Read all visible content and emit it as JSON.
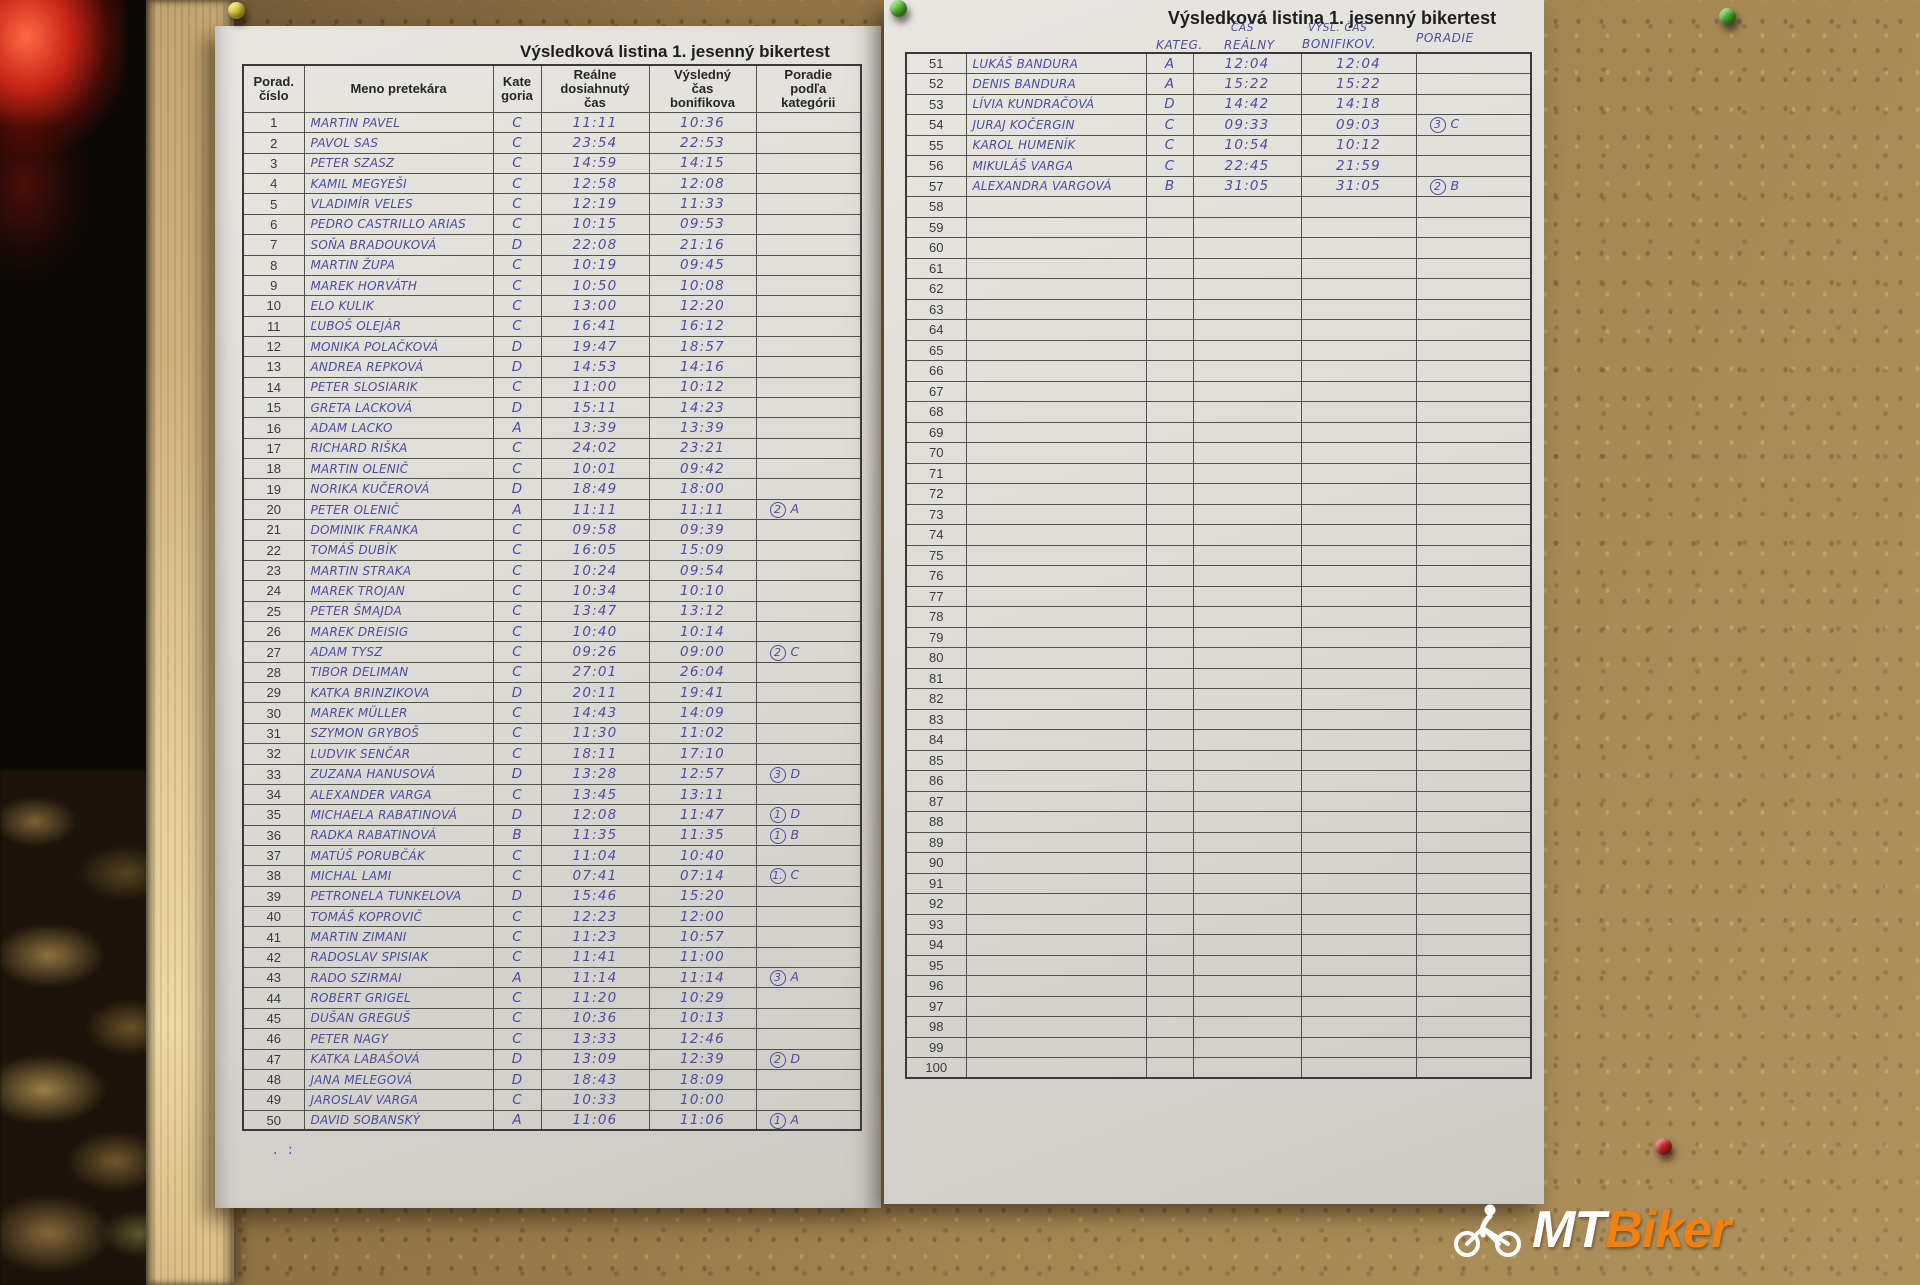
{
  "colors": {
    "ink": "#4c4c9d",
    "watermark_orange": "#f08011",
    "paper": "#dedcd6",
    "cork": "#9c7e4c"
  },
  "pins": [
    {
      "name": "pushpin-yellow",
      "color": "#e3cf2a"
    },
    {
      "name": "pushpin-green-left",
      "color": "#54c12d"
    },
    {
      "name": "pushpin-green-right",
      "color": "#49b32a"
    },
    {
      "name": "pushpin-red",
      "color": "#cf231e"
    }
  ],
  "left_sheet": {
    "title": "Výsledková listina 1. jesenný bikertest",
    "headers": [
      [
        "Porad.",
        "číslo"
      ],
      [
        "Meno pretekára"
      ],
      [
        "Kate",
        "goria"
      ],
      [
        "Reálne",
        "dosiahnutý",
        "čas"
      ],
      [
        "Výsledný",
        "čas",
        "bonifikova"
      ],
      [
        "Poradie",
        "podľa",
        "kategórii"
      ]
    ],
    "footer_marks": ". :",
    "rows": [
      {
        "n": 1,
        "name": "MARTIN PAVEL",
        "cat": "C",
        "t1": "11:11",
        "t2": "10:36"
      },
      {
        "n": 2,
        "name": "PAVOL SAS",
        "cat": "C",
        "t1": "23:54",
        "t2": "22:53"
      },
      {
        "n": 3,
        "name": "PETER SZASZ",
        "cat": "C",
        "t1": "14:59",
        "t2": "14:15"
      },
      {
        "n": 4,
        "name": "KAMIL MEGYEŠI",
        "cat": "C",
        "t1": "12:58",
        "t2": "12:08"
      },
      {
        "n": 5,
        "name": "VLADIMÍR VELES",
        "cat": "C",
        "t1": "12:19",
        "t2": "11:33"
      },
      {
        "n": 6,
        "name": "PEDRO CASTRILLO ARIAS",
        "cat": "C",
        "t1": "10:15",
        "t2": "09:53"
      },
      {
        "n": 7,
        "name": "SOŇA BRADOUKOVÁ",
        "cat": "D",
        "t1": "22:08",
        "t2": "21:16"
      },
      {
        "n": 8,
        "name": "MARTIN ŽUPA",
        "cat": "C",
        "t1": "10:19",
        "t2": "09:45"
      },
      {
        "n": 9,
        "name": "MAREK HORVÁTH",
        "cat": "C",
        "t1": "10:50",
        "t2": "10:08"
      },
      {
        "n": 10,
        "name": "ELO KULIK",
        "cat": "C",
        "t1": "13:00",
        "t2": "12:20"
      },
      {
        "n": 11,
        "name": "ĽUBOŠ OLEJÁR",
        "cat": "C",
        "t1": "16:41",
        "t2": "16:12"
      },
      {
        "n": 12,
        "name": "MONIKA POLAČKOVÁ",
        "cat": "D",
        "t1": "19:47",
        "t2": "18:57"
      },
      {
        "n": 13,
        "name": "ANDREA REPKOVÁ",
        "cat": "D",
        "t1": "14:53",
        "t2": "14:16"
      },
      {
        "n": 14,
        "name": "PETER SLOSIARIK",
        "cat": "C",
        "t1": "11:00",
        "t2": "10:12"
      },
      {
        "n": 15,
        "name": "GRETA LACKOVÁ",
        "cat": "D",
        "t1": "15:11",
        "t2": "14:23"
      },
      {
        "n": 16,
        "name": "ADAM LACKO",
        "cat": "A",
        "t1": "13:39",
        "t2": "13:39"
      },
      {
        "n": 17,
        "name": "RICHARD RIŠKA",
        "cat": "C",
        "t1": "24:02",
        "t2": "23:21"
      },
      {
        "n": 18,
        "name": "MARTIN OLENIČ",
        "cat": "C",
        "t1": "10:01",
        "t2": "09:42"
      },
      {
        "n": 19,
        "name": "NORIKA KUČEROVÁ",
        "cat": "D",
        "t1": "18:49",
        "t2": "18:00"
      },
      {
        "n": 20,
        "name": "PETER OLENIČ",
        "cat": "A",
        "t1": "11:11",
        "t2": "11:11",
        "p": "2A"
      },
      {
        "n": 21,
        "name": "DOMINIK FRANKA",
        "cat": "C",
        "t1": "09:58",
        "t2": "09:39"
      },
      {
        "n": 22,
        "name": "TOMÁŠ DUBÍK",
        "cat": "C",
        "t1": "16:05",
        "t2": "15:09"
      },
      {
        "n": 23,
        "name": "MARTIN STRAKA",
        "cat": "C",
        "t1": "10:24",
        "t2": "09:54"
      },
      {
        "n": 24,
        "name": "MAREK TROJAN",
        "cat": "C",
        "t1": "10:34",
        "t2": "10:10"
      },
      {
        "n": 25,
        "name": "PETER ŠMAJDA",
        "cat": "C",
        "t1": "13:47",
        "t2": "13:12"
      },
      {
        "n": 26,
        "name": "MAREK DREISIG",
        "cat": "C",
        "t1": "10:40",
        "t2": "10:14"
      },
      {
        "n": 27,
        "name": "ADAM TYSZ",
        "cat": "C",
        "t1": "09:26",
        "t2": "09:00",
        "p": "2C"
      },
      {
        "n": 28,
        "name": "TIBOR DELIMAN",
        "cat": "C",
        "t1": "27:01",
        "t2": "26:04"
      },
      {
        "n": 29,
        "name": "KATKA BRINZIKOVA",
        "cat": "D",
        "t1": "20:11",
        "t2": "19:41"
      },
      {
        "n": 30,
        "name": "MAREK MÜLLER",
        "cat": "C",
        "t1": "14:43",
        "t2": "14:09"
      },
      {
        "n": 31,
        "name": "SZYMON GRYBOŠ",
        "cat": "C",
        "t1": "11:30",
        "t2": "11:02"
      },
      {
        "n": 32,
        "name": "LUDVIK SENČAR",
        "cat": "C",
        "t1": "18:11",
        "t2": "17:10"
      },
      {
        "n": 33,
        "name": "ZUZANA HANUSOVÁ",
        "cat": "D",
        "t1": "13:28",
        "t2": "12:57",
        "p": "3D"
      },
      {
        "n": 34,
        "name": "ALEXANDER VARGA",
        "cat": "C",
        "t1": "13:45",
        "t2": "13:11"
      },
      {
        "n": 35,
        "name": "MICHAELA RABATINOVÁ",
        "cat": "D",
        "t1": "12:08",
        "t2": "11:47",
        "p": "1D"
      },
      {
        "n": 36,
        "name": "RADKA RABATINOVÁ",
        "cat": "B",
        "t1": "11:35",
        "t2": "11:35",
        "p": "1B"
      },
      {
        "n": 37,
        "name": "MATÚŠ PORUBČÁK",
        "cat": "C",
        "t1": "11:04",
        "t2": "10:40"
      },
      {
        "n": 38,
        "name": "MICHAL LAMI",
        "cat": "C",
        "t1": "07:41",
        "t2": "07:14",
        "p": "1.C"
      },
      {
        "n": 39,
        "name": "PETRONELA TUNKELOVA",
        "cat": "D",
        "t1": "15:46",
        "t2": "15:20"
      },
      {
        "n": 40,
        "name": "TOMÁŠ KOPROVIČ",
        "cat": "C",
        "t1": "12:23",
        "t2": "12:00"
      },
      {
        "n": 41,
        "name": "MARTIN ZIMANI",
        "cat": "C",
        "t1": "11:23",
        "t2": "10:57"
      },
      {
        "n": 42,
        "name": "RADOSLAV SPISIAK",
        "cat": "C",
        "t1": "11:41",
        "t2": "11:00"
      },
      {
        "n": 43,
        "name": "RADO SZIRMAI",
        "cat": "A",
        "t1": "11:14",
        "t2": "11:14",
        "p": "3A"
      },
      {
        "n": 44,
        "name": "ROBERT GRIGEL",
        "cat": "C",
        "t1": "11:20",
        "t2": "10:29"
      },
      {
        "n": 45,
        "name": "DUŠAN GREGUŠ",
        "cat": "C",
        "t1": "10:36",
        "t2": "10:13"
      },
      {
        "n": 46,
        "name": "PETER NAGY",
        "cat": "C",
        "t1": "13:33",
        "t2": "12:46"
      },
      {
        "n": 47,
        "name": "KATKA LABAŠOVÁ",
        "cat": "D",
        "t1": "13:09",
        "t2": "12:39",
        "p": "2D"
      },
      {
        "n": 48,
        "name": "JANA MELEGOVÁ",
        "cat": "D",
        "t1": "18:43",
        "t2": "18:09"
      },
      {
        "n": 49,
        "name": "JAROSLAV VARGA",
        "cat": "C",
        "t1": "10:33",
        "t2": "10:00"
      },
      {
        "n": 50,
        "name": "DAVID SOBANSKÝ",
        "cat": "A",
        "t1": "11:06",
        "t2": "11:06",
        "p": "1A"
      }
    ]
  },
  "right_sheet": {
    "title": "Výsledková listina 1. jesenný bikertest",
    "hw_headers": {
      "cas": "ČAS",
      "kateg": "KATEG.",
      "realny": "REÁLNY",
      "vysl": "VÝSL. ČAS",
      "bonifikov": "BONIFIKOV.",
      "poradie": "PORADIE"
    },
    "rows": [
      {
        "n": 51,
        "name": "LUKÁŠ BANDURA",
        "cat": "A",
        "t1": "12:04",
        "t2": "12:04"
      },
      {
        "n": 52,
        "name": "DENIS BANDURA",
        "cat": "A",
        "t1": "15:22",
        "t2": "15:22"
      },
      {
        "n": 53,
        "name": "LÍVIA KUNDRAČOVÁ",
        "cat": "D",
        "t1": "14:42",
        "t2": "14:18"
      },
      {
        "n": 54,
        "name": "JURAJ KOČERGIN",
        "cat": "C",
        "t1": "09:33",
        "t2": "09:03",
        "p": "3C"
      },
      {
        "n": 55,
        "name": "KAROL HUMENÍK",
        "cat": "C",
        "t1": "10:54",
        "t2": "10:12"
      },
      {
        "n": 56,
        "name": "MIKULÁŠ VARGA",
        "cat": "C",
        "t1": "22:45",
        "t2": "21:59"
      },
      {
        "n": 57,
        "name": "ALEXANDRA VARGOVÁ",
        "cat": "B",
        "t1": "31:05",
        "t2": "31:05",
        "p": "2B"
      },
      {
        "n": 58
      },
      {
        "n": 59
      },
      {
        "n": 60
      },
      {
        "n": 61
      },
      {
        "n": 62
      },
      {
        "n": 63
      },
      {
        "n": 64
      },
      {
        "n": 65
      },
      {
        "n": 66
      },
      {
        "n": 67
      },
      {
        "n": 68
      },
      {
        "n": 69
      },
      {
        "n": 70
      },
      {
        "n": 71
      },
      {
        "n": 72
      },
      {
        "n": 73
      },
      {
        "n": 74
      },
      {
        "n": 75
      },
      {
        "n": 76
      },
      {
        "n": 77
      },
      {
        "n": 78
      },
      {
        "n": 79
      },
      {
        "n": 80
      },
      {
        "n": 81
      },
      {
        "n": 82
      },
      {
        "n": 83
      },
      {
        "n": 84
      },
      {
        "n": 85
      },
      {
        "n": 86
      },
      {
        "n": 87
      },
      {
        "n": 88
      },
      {
        "n": 89
      },
      {
        "n": 90
      },
      {
        "n": 91
      },
      {
        "n": 92
      },
      {
        "n": 93
      },
      {
        "n": 94
      },
      {
        "n": 95
      },
      {
        "n": 96
      },
      {
        "n": 97
      },
      {
        "n": 98
      },
      {
        "n": 99
      },
      {
        "n": 100
      }
    ]
  },
  "watermark": {
    "prefix": "MT",
    "suffix": "Biker"
  }
}
